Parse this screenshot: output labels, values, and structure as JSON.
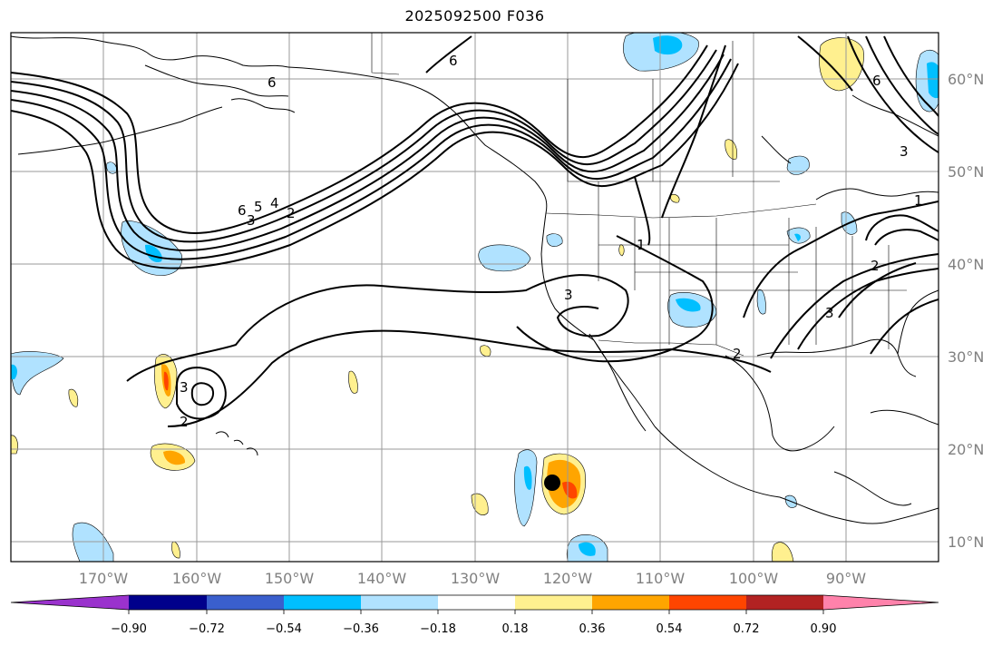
{
  "title": "2025092500 F036",
  "map": {
    "lon_range": [
      -179,
      -79
    ],
    "lat_range": [
      8,
      65
    ],
    "lon_ticks": [
      "170°W",
      "160°W",
      "150°W",
      "140°W",
      "130°W",
      "120°W",
      "110°W",
      "100°W",
      "90°W"
    ],
    "lat_ticks": [
      "60°N",
      "50°N",
      "40°N",
      "30°N",
      "20°N",
      "10°N"
    ],
    "grid": true,
    "contour_labels": [
      "6",
      "6",
      "6",
      "5",
      "4",
      "3",
      "2",
      "3",
      "2",
      "3",
      "3",
      "2",
      "3",
      "2",
      "1",
      "1",
      "6"
    ],
    "colors": {
      "neg_extreme": "#9a32cd",
      "neg_090": "#00008b",
      "neg_072": "#3a5fcd",
      "neg_054": "#00bfff",
      "neg_036": "#b0e2ff",
      "neutral": "#ffffff",
      "pos_018": "#fff08f",
      "pos_036": "#ffa500",
      "pos_054": "#ff4500",
      "pos_072": "#b22222",
      "pos_extreme": "#ff82ab"
    }
  },
  "colorbar": {
    "labels": [
      "−0.90",
      "−0.72",
      "−0.54",
      "−0.36",
      "−0.18",
      "0.18",
      "0.36",
      "0.54",
      "0.72",
      "0.90"
    ]
  }
}
